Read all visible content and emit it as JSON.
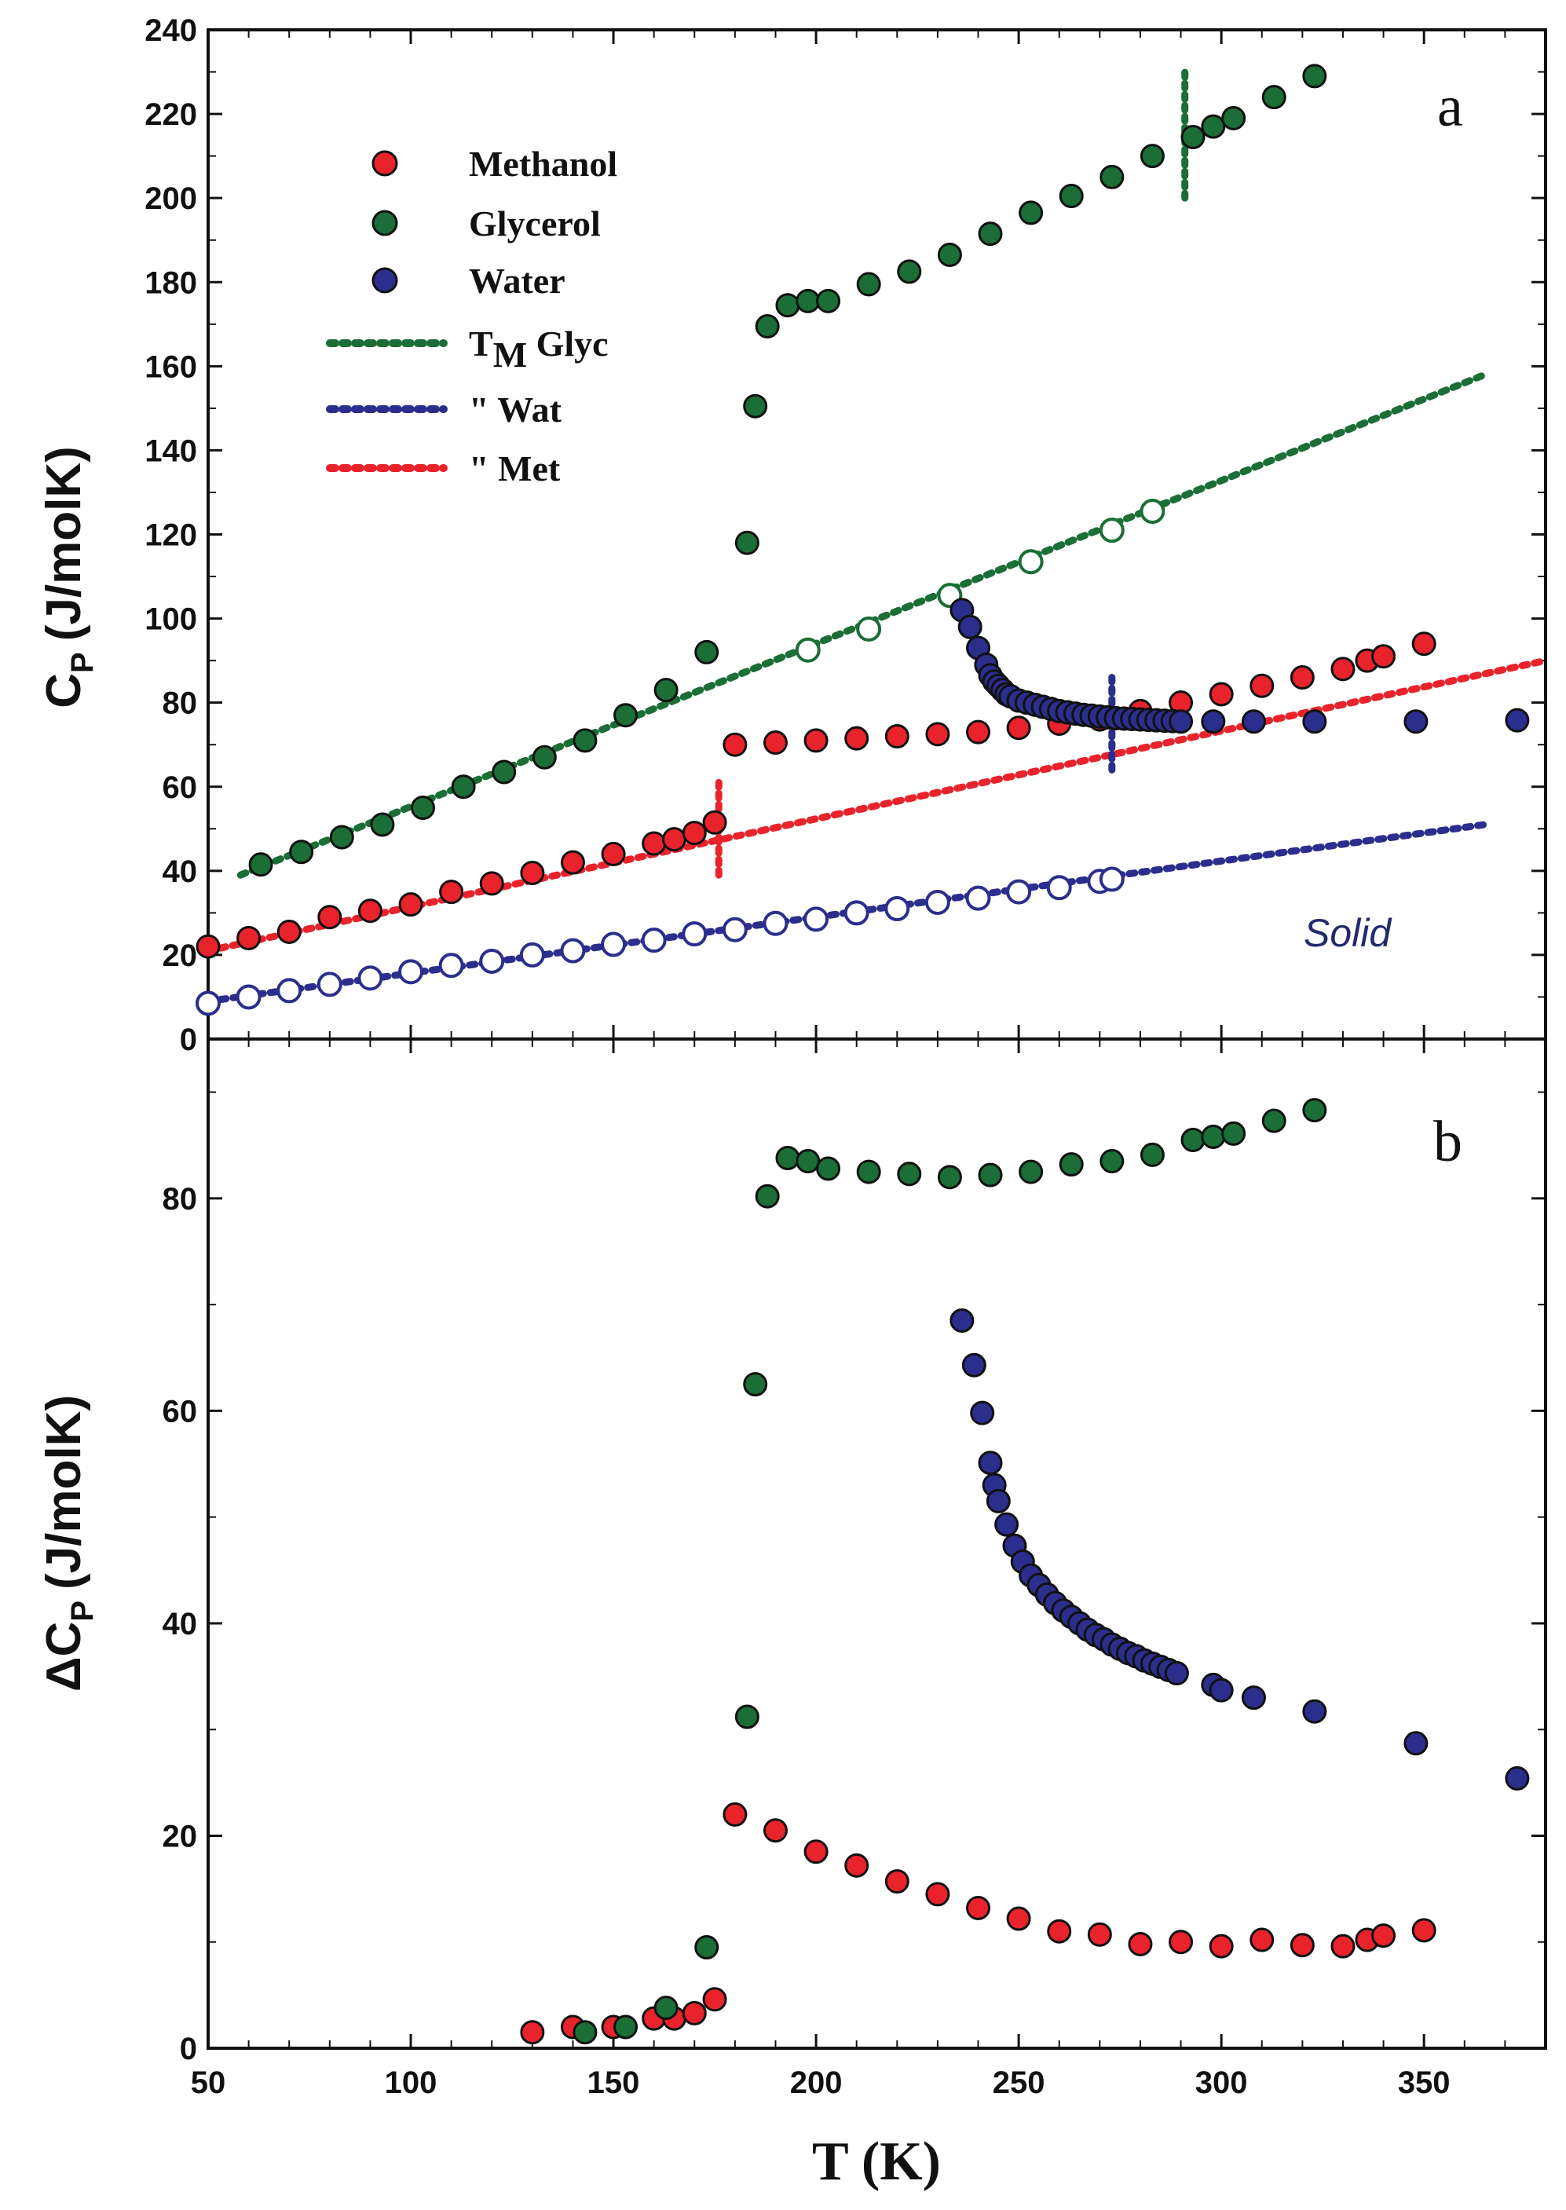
{
  "chart_data": [
    {
      "panel": "a",
      "type": "scatter",
      "panel_label": "a",
      "annotation": "Solid",
      "ylabel_main": "C",
      "ylabel_sub": "P",
      "ylabel_units": "(J/molK)",
      "xlim": [
        50,
        380
      ],
      "ylim": [
        0,
        240
      ],
      "yticks": [
        0,
        20,
        40,
        60,
        80,
        100,
        120,
        140,
        160,
        180,
        200,
        220,
        240
      ],
      "legend": [
        {
          "label": "Methanol",
          "kind": "marker",
          "series": "methanol"
        },
        {
          "label": "Glycerol",
          "kind": "marker",
          "series": "glycerol"
        },
        {
          "label": "Water",
          "kind": "marker",
          "series": "water"
        },
        {
          "label": "T",
          "sub": "M",
          "label_rest": " Glyc",
          "kind": "line",
          "series": "glycerol"
        },
        {
          "label": "\" Wat",
          "kind": "line",
          "series": "water"
        },
        {
          "label": "\" Met",
          "kind": "line",
          "series": "methanol"
        }
      ],
      "colors": {
        "methanol": "#e8232c",
        "glycerol": "#1a6e36",
        "water": "#2b2e8c"
      },
      "series": [
        {
          "name": "Methanol",
          "key": "methanol",
          "marker": "filled",
          "points": [
            [
              50,
              22
            ],
            [
              60,
              24
            ],
            [
              70,
              25.5
            ],
            [
              80,
              29
            ],
            [
              90,
              30.5
            ],
            [
              100,
              32
            ],
            [
              110,
              35
            ],
            [
              120,
              37
            ],
            [
              130,
              39.5
            ],
            [
              140,
              42
            ],
            [
              150,
              44
            ],
            [
              160,
              46.5
            ],
            [
              165,
              47.5
            ],
            [
              170,
              49
            ],
            [
              175,
              51.5
            ],
            [
              180,
              70
            ],
            [
              190,
              70.5
            ],
            [
              200,
              71
            ],
            [
              210,
              71.5
            ],
            [
              220,
              72
            ],
            [
              230,
              72.5
            ],
            [
              240,
              73
            ],
            [
              250,
              74
            ],
            [
              260,
              75
            ],
            [
              270,
              76
            ],
            [
              280,
              78
            ],
            [
              290,
              80
            ],
            [
              300,
              82
            ],
            [
              310,
              84
            ],
            [
              320,
              86
            ],
            [
              330,
              88
            ],
            [
              336,
              90
            ],
            [
              340,
              91
            ],
            [
              350,
              94
            ]
          ]
        },
        {
          "name": "Glycerol",
          "key": "glycerol",
          "marker": "filled",
          "points": [
            [
              63,
              41.5
            ],
            [
              73,
              44.5
            ],
            [
              83,
              48
            ],
            [
              93,
              51
            ],
            [
              103,
              55
            ],
            [
              113,
              60
            ],
            [
              123,
              63.5
            ],
            [
              133,
              67
            ],
            [
              143,
              71
            ],
            [
              153,
              77
            ],
            [
              163,
              83
            ],
            [
              173,
              92
            ],
            [
              183,
              118
            ],
            [
              185,
              150.5
            ],
            [
              188,
              169.5
            ],
            [
              193,
              174.5
            ],
            [
              198,
              175.5
            ],
            [
              203,
              175.5
            ],
            [
              213,
              179.5
            ],
            [
              223,
              182.5
            ],
            [
              233,
              186.5
            ],
            [
              243,
              191.5
            ],
            [
              253,
              196.5
            ],
            [
              263,
              200.5
            ],
            [
              273,
              205
            ],
            [
              283,
              210
            ],
            [
              293,
              214.5
            ],
            [
              298,
              217
            ],
            [
              303,
              219
            ],
            [
              313,
              224
            ],
            [
              323,
              229
            ]
          ]
        },
        {
          "name": "Water",
          "key": "water",
          "marker": "filled",
          "points": [
            [
              236,
              102
            ],
            [
              238,
              98
            ],
            [
              240,
              93
            ],
            [
              242,
              89
            ],
            [
              243,
              86.5
            ],
            [
              244,
              85
            ],
            [
              245,
              84
            ],
            [
              246,
              83
            ],
            [
              247,
              82
            ],
            [
              248,
              81.5
            ],
            [
              250,
              80.5
            ],
            [
              252,
              80
            ],
            [
              254,
              79.5
            ],
            [
              256,
              79
            ],
            [
              258,
              78.5
            ],
            [
              260,
              78
            ],
            [
              262,
              77.7
            ],
            [
              264,
              77.4
            ],
            [
              266,
              77.1
            ],
            [
              268,
              76.9
            ],
            [
              270,
              76.7
            ],
            [
              272,
              76.5
            ],
            [
              274,
              76.3
            ],
            [
              276,
              76.2
            ],
            [
              278,
              76.1
            ],
            [
              280,
              76
            ],
            [
              282,
              75.9
            ],
            [
              284,
              75.8
            ],
            [
              286,
              75.7
            ],
            [
              288,
              75.6
            ],
            [
              290,
              75.5
            ],
            [
              298,
              75.5
            ],
            [
              308,
              75.5
            ],
            [
              323,
              75.5
            ],
            [
              348,
              75.5
            ],
            [
              373,
              75.8
            ]
          ]
        },
        {
          "name": "Glycerol solid",
          "key": "glycerol",
          "marker": "open",
          "points": [
            [
              198,
              92.5
            ],
            [
              213,
              97.5
            ],
            [
              233,
              105.5
            ],
            [
              253,
              113.5
            ],
            [
              273,
              121
            ],
            [
              283,
              125.5
            ]
          ]
        },
        {
          "name": "Water solid",
          "key": "water",
          "marker": "open",
          "points": [
            [
              50,
              8.5
            ],
            [
              60,
              10
            ],
            [
              70,
              11.5
            ],
            [
              80,
              13
            ],
            [
              90,
              14.5
            ],
            [
              100,
              16
            ],
            [
              110,
              17.5
            ],
            [
              120,
              18.5
            ],
            [
              130,
              20
            ],
            [
              140,
              21
            ],
            [
              150,
              22.5
            ],
            [
              160,
              23.5
            ],
            [
              170,
              25
            ],
            [
              180,
              26
            ],
            [
              190,
              27.5
            ],
            [
              200,
              28.5
            ],
            [
              210,
              30
            ],
            [
              220,
              31
            ],
            [
              230,
              32.5
            ],
            [
              240,
              33.5
            ],
            [
              250,
              35
            ],
            [
              260,
              36
            ],
            [
              270,
              37.5
            ],
            [
              273,
              38
            ]
          ]
        }
      ],
      "trend_lines": [
        {
          "key": "glycerol",
          "from": [
            58,
            39
          ],
          "to": [
            365,
            158
          ]
        },
        {
          "key": "methanol",
          "from": [
            50,
            21
          ],
          "to": [
            380,
            90
          ]
        },
        {
          "key": "water",
          "from": [
            50,
            9
          ],
          "to": [
            365,
            51
          ]
        }
      ],
      "melting_markers": [
        {
          "key": "glycerol",
          "x": 291,
          "y_from": 200,
          "y_to": 231
        },
        {
          "key": "water",
          "x": 273,
          "y_from": 64,
          "y_to": 86
        },
        {
          "key": "methanol",
          "x": 176,
          "y_from": 39,
          "y_to": 61
        }
      ]
    },
    {
      "panel": "b",
      "type": "scatter",
      "panel_label": "b",
      "ylabel_main": "ΔC",
      "ylabel_sub": "P",
      "ylabel_units": "(J/molK)",
      "xlabel": "T (K)",
      "xlim": [
        50,
        380
      ],
      "ylim": [
        0,
        95
      ],
      "xticks": [
        50,
        100,
        150,
        200,
        250,
        300,
        350
      ],
      "yticks": [
        0,
        20,
        40,
        60,
        80
      ],
      "series": [
        {
          "name": "Methanol",
          "key": "methanol",
          "points": [
            [
              130,
              1.5
            ],
            [
              140,
              2
            ],
            [
              150,
              2
            ],
            [
              160,
              2.8
            ],
            [
              165,
              2.8
            ],
            [
              170,
              3.3
            ],
            [
              175,
              4.6
            ],
            [
              180,
              22
            ],
            [
              190,
              20.5
            ],
            [
              200,
              18.5
            ],
            [
              210,
              17.2
            ],
            [
              220,
              15.7
            ],
            [
              230,
              14.5
            ],
            [
              240,
              13.2
            ],
            [
              250,
              12.2
            ],
            [
              260,
              11
            ],
            [
              270,
              10.7
            ],
            [
              280,
              9.8
            ],
            [
              290,
              10
            ],
            [
              300,
              9.6
            ],
            [
              310,
              10.2
            ],
            [
              320,
              9.7
            ],
            [
              330,
              9.6
            ],
            [
              336,
              10.2
            ],
            [
              340,
              10.6
            ],
            [
              350,
              11.1
            ]
          ]
        },
        {
          "name": "Glycerol",
          "key": "glycerol",
          "points": [
            [
              143,
              1.5
            ],
            [
              153,
              2
            ],
            [
              163,
              3.8
            ],
            [
              173,
              9.5
            ],
            [
              183,
              31.2
            ],
            [
              185,
              62.5
            ],
            [
              188,
              80.2
            ],
            [
              193,
              83.8
            ],
            [
              198,
              83.5
            ],
            [
              203,
              82.8
            ],
            [
              213,
              82.5
            ],
            [
              223,
              82.3
            ],
            [
              233,
              82
            ],
            [
              243,
              82.2
            ],
            [
              253,
              82.5
            ],
            [
              263,
              83.2
            ],
            [
              273,
              83.5
            ],
            [
              283,
              84.1
            ],
            [
              293,
              85.5
            ],
            [
              298,
              85.8
            ],
            [
              303,
              86.1
            ],
            [
              313,
              87.3
            ],
            [
              323,
              88.3
            ]
          ]
        },
        {
          "name": "Water",
          "key": "water",
          "points": [
            [
              236,
              68.5
            ],
            [
              239,
              64.3
            ],
            [
              241,
              59.8
            ],
            [
              243,
              55.1
            ],
            [
              244,
              53
            ],
            [
              245,
              51.5
            ],
            [
              247,
              49.3
            ],
            [
              249,
              47.3
            ],
            [
              251,
              45.8
            ],
            [
              253,
              44.5
            ],
            [
              255,
              43.6
            ],
            [
              257,
              42.7
            ],
            [
              259,
              41.9
            ],
            [
              261,
              41.2
            ],
            [
              263,
              40.6
            ],
            [
              265,
              40
            ],
            [
              267,
              39.4
            ],
            [
              269,
              38.9
            ],
            [
              271,
              38.5
            ],
            [
              273,
              38
            ],
            [
              275,
              37.6
            ],
            [
              277,
              37.2
            ],
            [
              279,
              36.9
            ],
            [
              281,
              36.5
            ],
            [
              283,
              36.2
            ],
            [
              285,
              35.9
            ],
            [
              287,
              35.6
            ],
            [
              289,
              35.3
            ],
            [
              298,
              34.2
            ],
            [
              300,
              33.7
            ],
            [
              308,
              33
            ],
            [
              323,
              31.7
            ],
            [
              348,
              28.7
            ],
            [
              373,
              25.4
            ]
          ]
        }
      ]
    }
  ]
}
